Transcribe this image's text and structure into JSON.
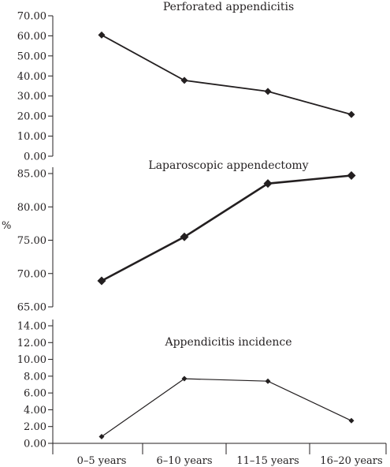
{
  "chart_data": [
    {
      "type": "line",
      "title": "Perforated appendicitis",
      "categories": [
        "0–5 years",
        "6–10 years",
        "11–15 years",
        "16–20 years"
      ],
      "values": [
        60.4,
        37.8,
        32.3,
        20.8
      ],
      "ylim": [
        0,
        70
      ],
      "yticks": [
        "0.00",
        "10.00",
        "20.00",
        "30.00",
        "40.00",
        "50.00",
        "60.00",
        "70.00"
      ],
      "ylabel": "",
      "grid": false
    },
    {
      "type": "line",
      "title": "Laparoscopic appendectomy",
      "categories": [
        "0–5 years",
        "6–10 years",
        "11–15 years",
        "16–20 years"
      ],
      "values": [
        68.9,
        75.5,
        83.5,
        84.7
      ],
      "ylim": [
        65,
        87.5
      ],
      "yticks": [
        "65.00",
        "70.00",
        "75.00",
        "80.00",
        "85.00"
      ],
      "ylabel": "%",
      "grid": false
    },
    {
      "type": "line",
      "title": "Appendicitis incidence",
      "categories": [
        "0–5 years",
        "6–10 years",
        "11–15 years",
        "16–20 years"
      ],
      "values": [
        0.8,
        7.7,
        7.4,
        2.7
      ],
      "ylim": [
        0,
        14
      ],
      "yticks": [
        "0.00",
        "2.00",
        "4.00",
        "6.00",
        "8.00",
        "10.00",
        "12.00",
        "14.00"
      ],
      "ylabel": "",
      "grid": false
    }
  ]
}
